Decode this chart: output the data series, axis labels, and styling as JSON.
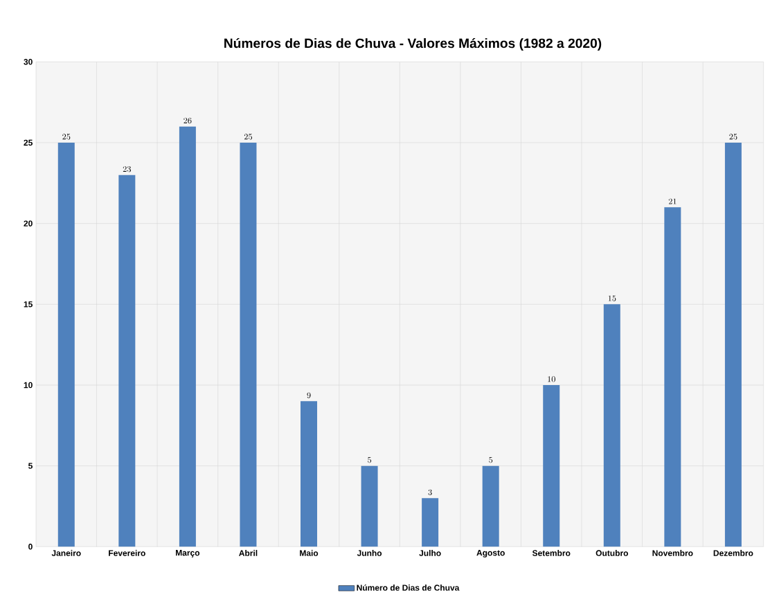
{
  "chart_data": {
    "type": "bar",
    "title": "Números de Dias de Chuva - Valores Máximos (1982 a 2020)",
    "categories": [
      "Janeiro",
      "Fevereiro",
      "Março",
      "Abril",
      "Maio",
      "Junho",
      "Julho",
      "Agosto",
      "Setembro",
      "Outubro",
      "Novembro",
      "Dezembro"
    ],
    "series": [
      {
        "name": "Número de Dias de Chuva",
        "color": "#4f81bd",
        "values": [
          25,
          23,
          26,
          25,
          9,
          5,
          3,
          5,
          10,
          15,
          21,
          25
        ]
      }
    ],
    "ylim": [
      0,
      30
    ],
    "yticks": [
      0,
      5,
      10,
      15,
      20,
      25,
      30
    ],
    "grid": true,
    "legend": "bottom",
    "data_labels": true
  }
}
